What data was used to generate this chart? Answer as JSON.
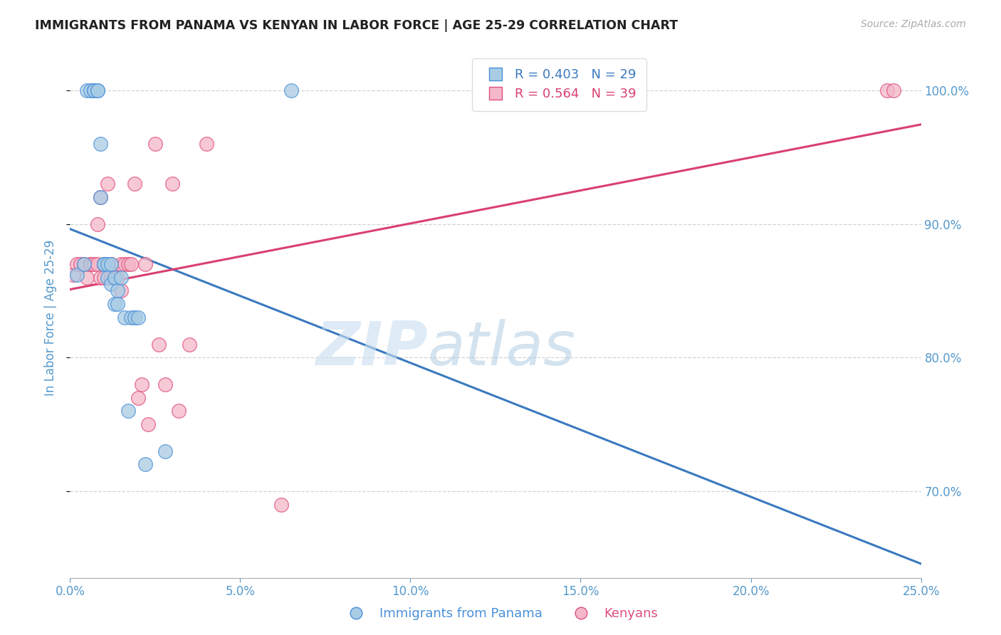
{
  "title": "IMMIGRANTS FROM PANAMA VS KENYAN IN LABOR FORCE | AGE 25-29 CORRELATION CHART",
  "source": "Source: ZipAtlas.com",
  "ylabel_left": "In Labor Force | Age 25-29",
  "xlim": [
    0.0,
    0.25
  ],
  "ylim": [
    0.635,
    1.025
  ],
  "yticks": [
    0.7,
    0.8,
    0.9,
    1.0
  ],
  "xticks": [
    0.0,
    0.05,
    0.1,
    0.15,
    0.2,
    0.25
  ],
  "xtick_labels": [
    "0.0%",
    "5.0%",
    "10.0%",
    "15.0%",
    "20.0%",
    "25.0%"
  ],
  "ytick_labels_right": [
    "70.0%",
    "80.0%",
    "90.0%",
    "100.0%"
  ],
  "blue_color": "#a8cce4",
  "pink_color": "#f4b8c8",
  "blue_edge_color": "#4a90d9",
  "pink_edge_color": "#e05080",
  "blue_line_color": "#3a7abf",
  "pink_line_color": "#d94070",
  "legend_R_blue": "R = 0.403",
  "legend_N_blue": "N = 29",
  "legend_R_pink": "R = 0.564",
  "legend_N_pink": "N = 39",
  "background_color": "#ffffff",
  "grid_color": "#c8c8c8",
  "title_color": "#222222",
  "axis_label_color": "#5599cc",
  "tick_color": "#5599cc",
  "blue_x": [
    0.002,
    0.004,
    0.005,
    0.006,
    0.007,
    0.007,
    0.008,
    0.008,
    0.009,
    0.009,
    0.01,
    0.01,
    0.011,
    0.011,
    0.012,
    0.012,
    0.013,
    0.013,
    0.014,
    0.014,
    0.015,
    0.016,
    0.017,
    0.018,
    0.019,
    0.02,
    0.022,
    0.028,
    0.065
  ],
  "blue_y": [
    0.862,
    0.87,
    1.0,
    1.0,
    1.0,
    1.0,
    1.0,
    1.0,
    0.96,
    0.92,
    0.87,
    0.87,
    0.87,
    0.86,
    0.87,
    0.855,
    0.86,
    0.84,
    0.85,
    0.84,
    0.86,
    0.83,
    0.76,
    0.83,
    0.83,
    0.83,
    0.72,
    0.73,
    1.0
  ],
  "pink_x": [
    0.001,
    0.002,
    0.003,
    0.004,
    0.005,
    0.006,
    0.006,
    0.007,
    0.008,
    0.008,
    0.009,
    0.009,
    0.01,
    0.01,
    0.011,
    0.012,
    0.012,
    0.013,
    0.014,
    0.015,
    0.015,
    0.016,
    0.017,
    0.018,
    0.019,
    0.02,
    0.021,
    0.022,
    0.023,
    0.025,
    0.026,
    0.028,
    0.03,
    0.032,
    0.035,
    0.04,
    0.062,
    0.24,
    0.242
  ],
  "pink_y": [
    0.862,
    0.87,
    0.87,
    0.87,
    0.86,
    0.87,
    0.87,
    0.87,
    0.87,
    0.9,
    0.86,
    0.92,
    0.87,
    0.86,
    0.93,
    0.86,
    0.87,
    0.86,
    0.86,
    0.87,
    0.85,
    0.87,
    0.87,
    0.87,
    0.93,
    0.77,
    0.78,
    0.87,
    0.75,
    0.96,
    0.81,
    0.78,
    0.93,
    0.76,
    0.81,
    0.96,
    0.69,
    1.0,
    1.0
  ],
  "watermark_zip_color": "#c8dff0",
  "watermark_atlas_color": "#a8c8e0"
}
